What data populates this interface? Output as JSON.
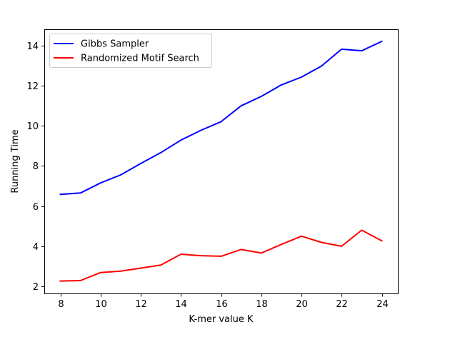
{
  "chart_data": {
    "type": "line",
    "xlabel": "K-mer value K",
    "ylabel": "Running Time",
    "xlim": [
      7.2,
      24.8
    ],
    "ylim": [
      1.65,
      14.8
    ],
    "x_ticks": [
      8,
      10,
      12,
      14,
      16,
      18,
      20,
      22,
      24
    ],
    "y_ticks": [
      2,
      4,
      6,
      8,
      10,
      12,
      14
    ],
    "grid": false,
    "legend_position": "top-left",
    "x": [
      8,
      9,
      10,
      11,
      12,
      13,
      14,
      15,
      16,
      17,
      18,
      19,
      20,
      21,
      22,
      23,
      24
    ],
    "series": [
      {
        "name": "Gibbs Sampler",
        "color": "#0000ff",
        "values": [
          6.58,
          6.65,
          7.15,
          7.55,
          8.12,
          8.66,
          9.28,
          9.77,
          10.2,
          10.99,
          11.46,
          12.03,
          12.42,
          12.97,
          13.81,
          13.73,
          14.2
        ]
      },
      {
        "name": "Randomized Motif Search",
        "color": "#ff0000",
        "values": [
          2.27,
          2.29,
          2.69,
          2.76,
          2.91,
          3.06,
          3.6,
          3.53,
          3.5,
          3.84,
          3.66,
          4.09,
          4.5,
          4.19,
          4.0,
          4.8,
          4.27
        ]
      }
    ]
  }
}
